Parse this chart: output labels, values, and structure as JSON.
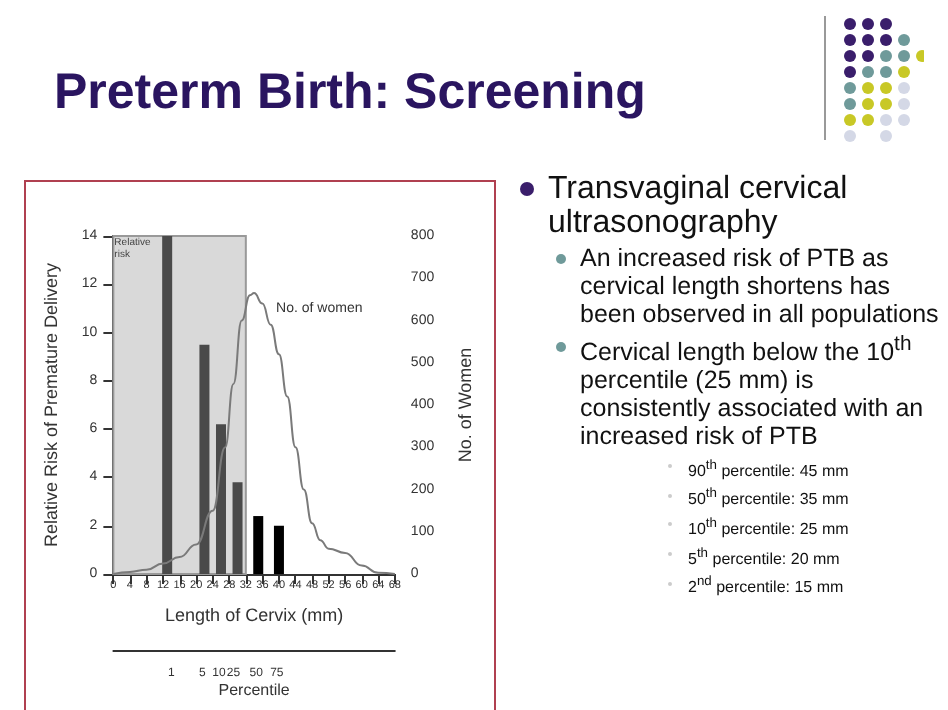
{
  "chart_data": {
    "type": "bar",
    "title": "Preterm Birth: Screening",
    "xlabel": "Length of Cervix (mm)",
    "ylabel": "Relative Risk of Premature Delivery",
    "y2label": "No. of Women",
    "x2label": "Percentile",
    "series": [
      {
        "x": [
          13,
          22,
          26,
          30,
          35,
          40
        ],
        "values": [
          14,
          9.5,
          6.2,
          3.8,
          2.4,
          2.0
        ],
        "colors": [
          "#4a4a4a",
          "#4a4a4a",
          "#4a4a4a",
          "#4a4a4a",
          "#000000",
          "#000000"
        ]
      },
      {
        "type": "line",
        "name": "No. of women",
        "axis": "y2",
        "color": "#7a7a7a",
        "x": [
          0,
          4,
          8,
          12,
          16,
          20,
          24,
          27,
          29,
          31,
          33,
          34,
          36,
          38,
          40,
          42,
          44,
          46,
          48,
          50,
          52,
          56,
          60,
          64,
          68
        ],
        "values": [
          0,
          5,
          10,
          25,
          40,
          70,
          150,
          300,
          450,
          600,
          660,
          665,
          640,
          590,
          520,
          420,
          300,
          200,
          120,
          80,
          60,
          50,
          20,
          3,
          0
        ]
      }
    ],
    "xlim": [
      0,
      68
    ],
    "xticks": [
      0,
      4,
      8,
      12,
      16,
      20,
      24,
      28,
      32,
      36,
      40,
      44,
      48,
      52,
      56,
      60,
      64,
      68
    ],
    "ylim": [
      0,
      14
    ],
    "yticks": [
      0,
      2,
      4,
      6,
      8,
      10,
      12,
      14
    ],
    "y2lim": [
      0,
      800
    ],
    "y2ticks": [
      0,
      100,
      200,
      300,
      400,
      500,
      600,
      700,
      800
    ],
    "bands": [
      {
        "axis": "x",
        "from": 0,
        "to": 32,
        "label": "Relative risk",
        "color": "#d9d9d9"
      }
    ],
    "grid": false,
    "legend": false,
    "annotations": [
      "Transvaginal cervical ultrasonography",
      "An increased risk of PTB as cervical length shortens has been observed in all populations",
      "Cervical length below the 10$^{th}$ percentile (25 mm) is consistently associated with an increased risk of PTB",
      "90$^{th}$ percentile: 45 mm",
      "50$^{th}$ percentile: 35 mm",
      "10$^{th}$ percentile: 25 mm",
      "5$^{th}$ percentile: 20 mm",
      "2$^{nd}$ percentile: 15 mm",
      "1",
      "5",
      "10",
      "25",
      "50",
      "75"
    ]
  }
}
